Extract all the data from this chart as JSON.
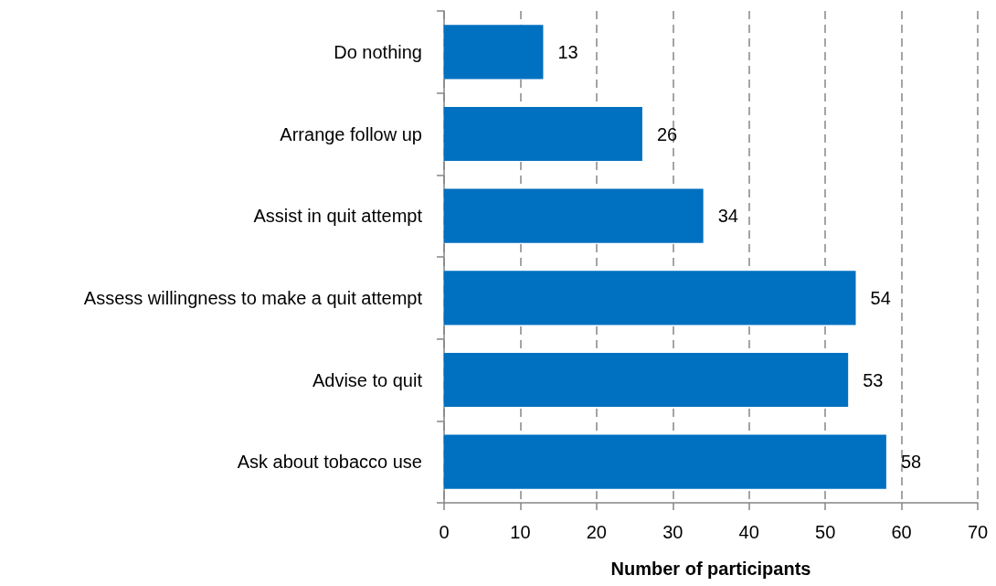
{
  "chart_data": {
    "type": "bar",
    "orientation": "horizontal",
    "categories": [
      "Do nothing",
      "Arrange follow up",
      "Assist in quit attempt",
      "Assess willingness to make a quit attempt",
      "Advise to quit",
      "Ask about tobacco use"
    ],
    "values": [
      13,
      26,
      34,
      54,
      53,
      58
    ],
    "color": "#0070c0",
    "xlabel": "Number of participants",
    "xlim": [
      0,
      70
    ],
    "xticks": [
      0,
      10,
      20,
      30,
      40,
      50,
      60,
      70
    ],
    "grid": "x",
    "data_labels": true
  }
}
